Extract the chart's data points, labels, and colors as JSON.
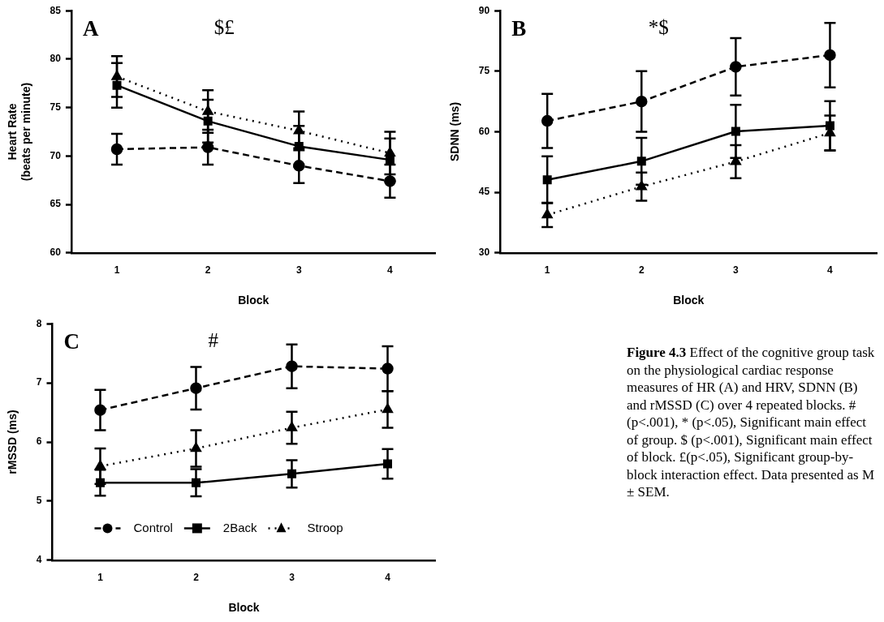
{
  "chart_data": [
    {
      "type": "line",
      "categories": [
        "1",
        "2",
        "3",
        "4"
      ],
      "xlabel": "Block",
      "ylabel": "Heart Rate\n(beats per minute)",
      "ylim": [
        60,
        85
      ],
      "yticks": [
        60,
        65,
        70,
        75,
        80,
        85
      ],
      "grid": false,
      "legend": false,
      "annotations": [
        "A",
        "$£"
      ],
      "series": [
        {
          "color": "#000000",
          "marker": "circle",
          "line_style": "dashed",
          "values": [
            70.7,
            70.9,
            69.0,
            67.4
          ],
          "errors": [
            1.6,
            1.8,
            1.8,
            1.7
          ]
        },
        {
          "color": "#000000",
          "marker": "square",
          "line_style": "solid",
          "values": [
            77.3,
            73.6,
            71.0,
            69.6
          ],
          "errors": [
            2.3,
            2.2,
            2.1,
            2.2
          ]
        },
        {
          "color": "#000000",
          "marker": "triangle",
          "line_style": "dotted",
          "values": [
            78.2,
            74.6,
            72.6,
            70.3
          ],
          "errors": [
            2.1,
            2.2,
            2.0,
            2.2
          ]
        }
      ]
    },
    {
      "type": "line",
      "categories": [
        "1",
        "2",
        "3",
        "4"
      ],
      "xlabel": "Block",
      "ylabel": "SDNN (ms)",
      "ylim": [
        30,
        90
      ],
      "yticks": [
        30,
        45,
        60,
        75,
        90
      ],
      "grid": false,
      "legend": false,
      "annotations": [
        "B",
        "*$"
      ],
      "series": [
        {
          "color": "#000000",
          "marker": "circle",
          "line_style": "dashed",
          "values": [
            62.7,
            67.5,
            76.1,
            79.0
          ],
          "errors": [
            6.7,
            7.5,
            7.1,
            8.0
          ]
        },
        {
          "color": "#000000",
          "marker": "square",
          "line_style": "solid",
          "values": [
            48.1,
            52.7,
            60.1,
            61.5
          ],
          "errors": [
            5.8,
            5.8,
            6.6,
            6.1
          ]
        },
        {
          "color": "#000000",
          "marker": "triangle",
          "line_style": "dotted",
          "values": [
            39.4,
            46.4,
            52.6,
            59.7
          ],
          "errors": [
            3.0,
            3.5,
            4.1,
            4.3
          ]
        }
      ]
    },
    {
      "type": "line",
      "categories": [
        "1",
        "2",
        "3",
        "4"
      ],
      "xlabel": "Block",
      "ylabel": "rMSSD (ms)",
      "ylim": [
        4,
        8
      ],
      "yticks": [
        4,
        5,
        6,
        7,
        8
      ],
      "grid": false,
      "legend": "bottom",
      "annotations": [
        "C",
        "#",
        "Figure 4.3",
        "Effect of the cognitive group task on the physiological cardiac response measures of HR (A) and HRV, SDNN (B) and rMSSD (C) over 4 repeated blocks. # (p<.001), * (p<.05), Significant main effect of group. $ (p<.001), Significant main effect of block. £(p<.05), Significant group-by-block interaction effect. Data presented as M ± SEM."
      ],
      "series": [
        {
          "name": "Control",
          "color": "#000000",
          "marker": "circle",
          "line_style": "dashed",
          "values": [
            6.54,
            6.91,
            7.28,
            7.24
          ],
          "errors": [
            0.34,
            0.36,
            0.37,
            0.38
          ]
        },
        {
          "name": "2Back",
          "color": "#000000",
          "marker": "square",
          "line_style": "solid",
          "values": [
            5.31,
            5.31,
            5.46,
            5.63
          ],
          "errors": [
            0.22,
            0.23,
            0.23,
            0.25
          ]
        },
        {
          "name": "Stroop",
          "color": "#000000",
          "marker": "triangle",
          "line_style": "dotted",
          "values": [
            5.59,
            5.89,
            6.24,
            6.55
          ],
          "errors": [
            0.3,
            0.31,
            0.27,
            0.31
          ]
        }
      ]
    }
  ]
}
